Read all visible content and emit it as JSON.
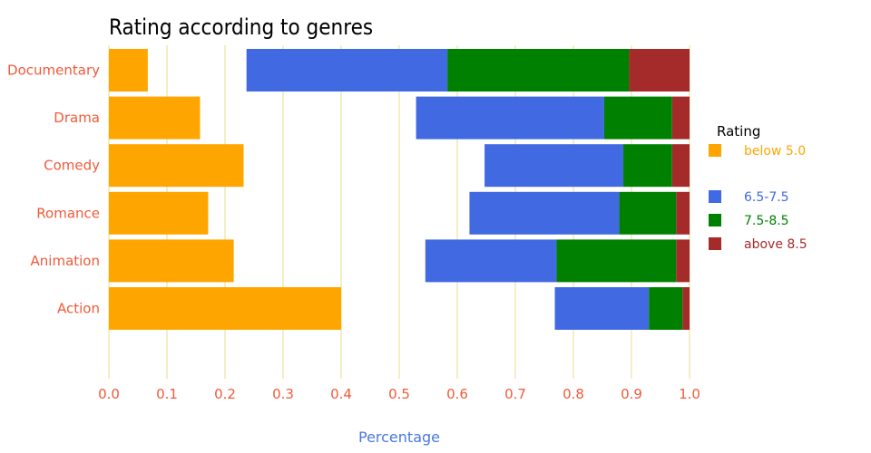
{
  "chart_data": {
    "type": "bar",
    "orientation": "horizontal",
    "title": "Rating according to genres",
    "xlabel": "Percentage",
    "ylabel": "",
    "xlim": [
      0,
      1
    ],
    "xticks": [
      "0.0",
      "0.1",
      "0.2",
      "0.3",
      "0.4",
      "0.5",
      "0.6",
      "0.7",
      "0.8",
      "0.9",
      "1.0"
    ],
    "grid": true,
    "legend_title": "Rating",
    "legend_position": "right",
    "categories": [
      "Documentary",
      "Drama",
      "Comedy",
      "Romance",
      "Animation",
      "Action"
    ],
    "series": [
      {
        "name": "below 5.0",
        "color": "#ffa500",
        "starts": [
          0,
          0,
          0,
          0,
          0,
          0
        ],
        "ends": [
          0.067,
          0.157,
          0.232,
          0.171,
          0.215,
          0.4
        ]
      },
      {
        "name": "6.5-7.5",
        "color": "#4169e1",
        "starts": [
          0.237,
          0.529,
          0.647,
          0.621,
          0.545,
          0.768
        ],
        "ends": [
          0.583,
          0.853,
          0.886,
          0.879,
          0.771,
          0.93
        ]
      },
      {
        "name": "7.5-8.5",
        "color": "#008000",
        "starts": [
          0.583,
          0.853,
          0.886,
          0.879,
          0.771,
          0.93
        ],
        "ends": [
          0.896,
          0.97,
          0.97,
          0.977,
          0.977,
          0.988
        ]
      },
      {
        "name": "above 8.5",
        "color": "#a52a2a",
        "starts": [
          0.896,
          0.97,
          0.97,
          0.977,
          0.977,
          0.988
        ],
        "ends": [
          1,
          1,
          1,
          1,
          1,
          1
        ]
      }
    ]
  }
}
